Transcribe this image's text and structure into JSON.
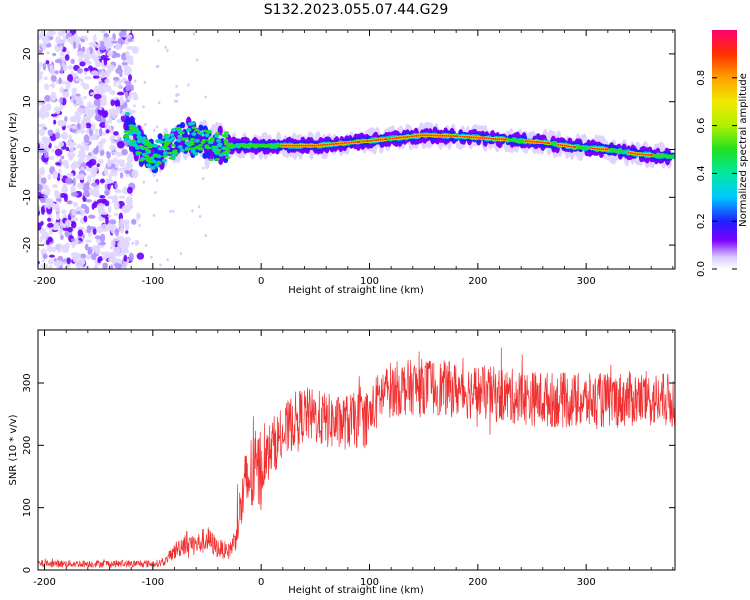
{
  "figure": {
    "title": "S132.2023.055.07.44.G29"
  },
  "chart_data": [
    {
      "type": "heatmap",
      "xlabel": "Height of straight line (km)",
      "ylabel": "Frequency (Hz)",
      "xlim": [
        -206,
        382
      ],
      "ylim": [
        -25,
        25
      ],
      "xticks": [
        -200,
        -100,
        0,
        100,
        200,
        300
      ],
      "yticks": [
        -20,
        -10,
        0,
        10,
        20
      ],
      "colorbar": {
        "label": "Normalized spectral amplitude",
        "ticks": [
          0.0,
          0.2,
          0.4,
          0.6,
          0.8
        ],
        "range": [
          0,
          1
        ],
        "colormap": "rainbow"
      },
      "ridge": {
        "x": [
          -125,
          -110,
          -100,
          -90,
          -80,
          -70,
          -60,
          -50,
          -40,
          -30,
          0,
          50,
          70,
          100,
          130,
          150,
          180,
          200,
          230,
          260,
          290,
          320,
          350,
          382
        ],
        "y": [
          5,
          0,
          -2,
          0,
          1,
          3,
          2,
          1,
          0.5,
          0.8,
          0.8,
          0.8,
          1.2,
          1.8,
          2.5,
          3,
          2.8,
          2.5,
          2,
          1.5,
          0.5,
          0,
          -1,
          -1.5
        ]
      }
    },
    {
      "type": "line",
      "xlabel": "Height of straight line (km)",
      "ylabel": "SNR (10 * v/v)",
      "xlim": [
        -206,
        382
      ],
      "ylim": [
        0,
        385
      ],
      "xticks": [
        -200,
        -100,
        0,
        100,
        200,
        300
      ],
      "yticks": [
        0,
        100,
        200,
        300
      ],
      "color": "#f03030",
      "trend": {
        "x": [
          -206,
          -150,
          -100,
          -90,
          -80,
          -70,
          -60,
          -50,
          -40,
          -30,
          -25,
          -20,
          -15,
          -10,
          0,
          10,
          20,
          30,
          40,
          50,
          60,
          70,
          80,
          90,
          100,
          110,
          120,
          150,
          200,
          250,
          300,
          350,
          382
        ],
        "y": [
          10,
          10,
          10,
          12,
          30,
          45,
          40,
          50,
          35,
          30,
          45,
          90,
          130,
          150,
          160,
          200,
          215,
          240,
          250,
          245,
          240,
          235,
          238,
          240,
          245,
          280,
          290,
          295,
          285,
          275,
          270,
          275,
          270
        ]
      }
    }
  ]
}
